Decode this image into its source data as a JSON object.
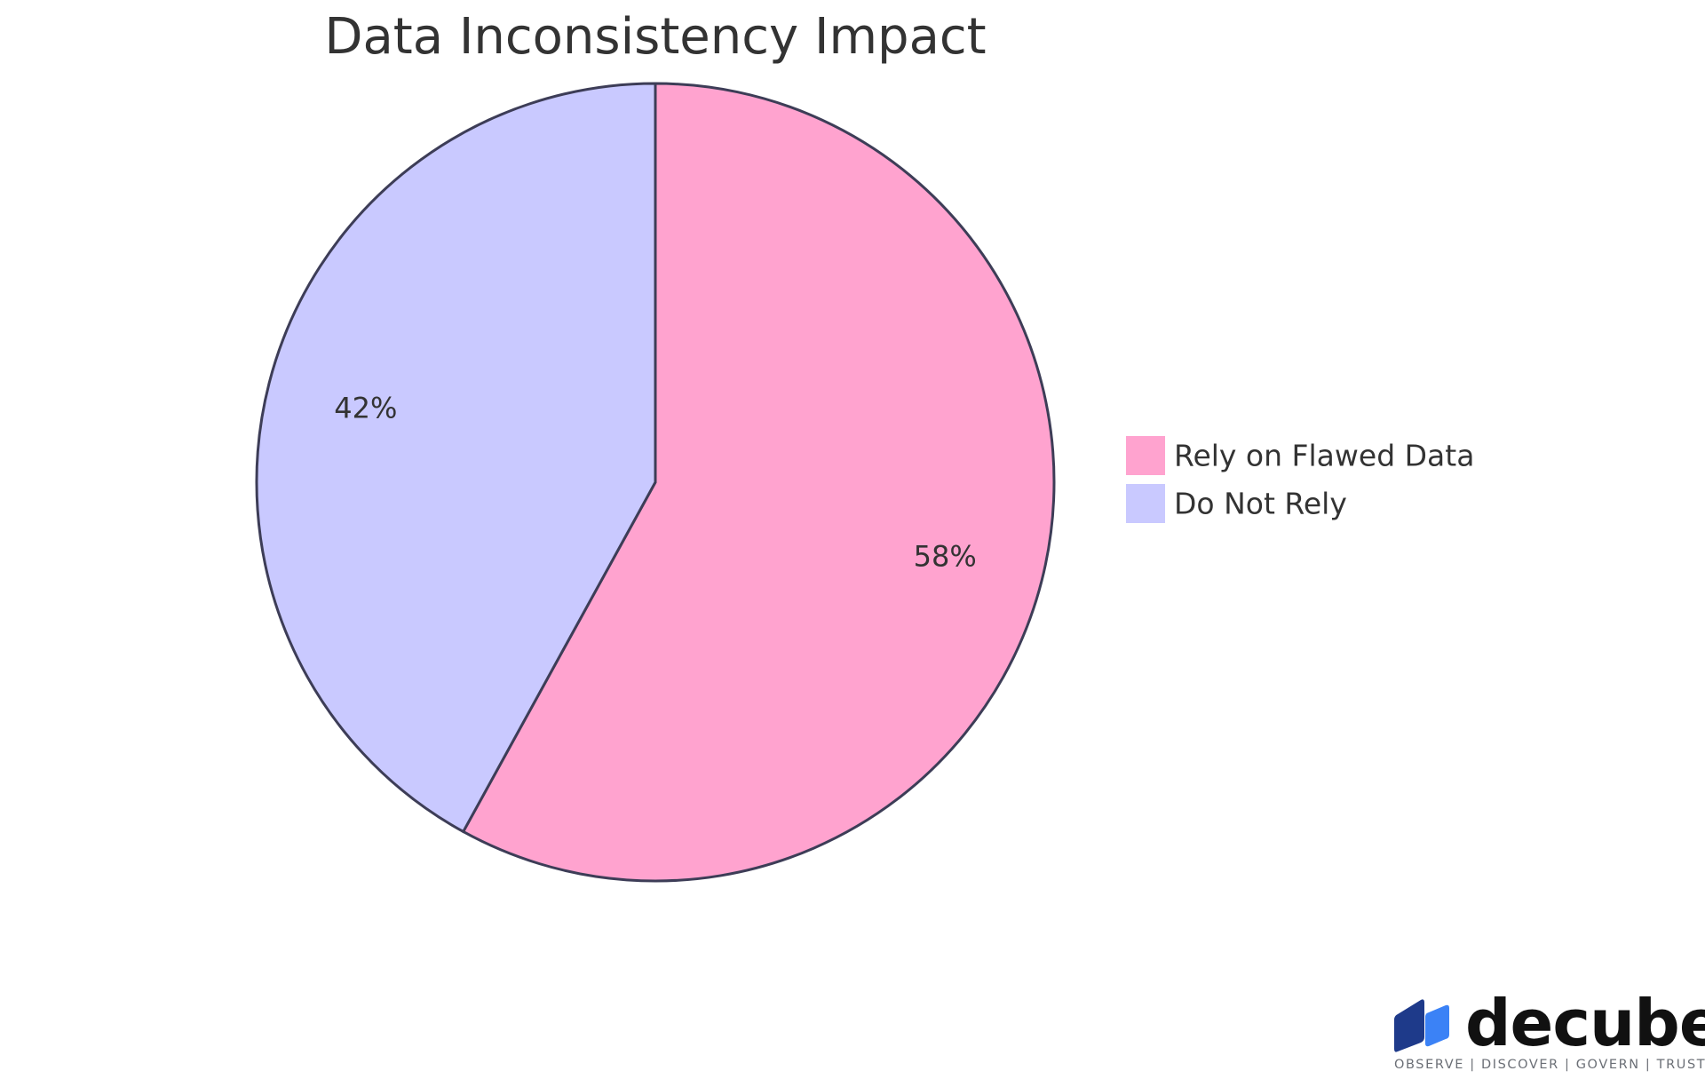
{
  "chart_data": {
    "type": "pie",
    "title": "Data Inconsistency Impact",
    "slices": [
      {
        "name": "Rely on Flawed Data",
        "value": 58,
        "label": "58%",
        "color": "#ffa3cf"
      },
      {
        "name": "Do Not Rely",
        "value": 42,
        "label": "42%",
        "color": "#c9c9ff"
      }
    ],
    "legend_position": "right",
    "stroke_color": "#3d3d57"
  },
  "brand": {
    "name": "decube",
    "tagline": "OBSERVE | DISCOVER | GOVERN | TRUST",
    "colors": {
      "dark": "#1e3a8a",
      "light": "#3b82f6"
    },
    "icon": "cube-logo-icon"
  }
}
